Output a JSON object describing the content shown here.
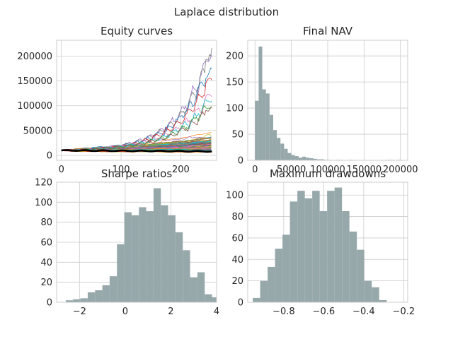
{
  "figure": {
    "title": "Laplace distribution"
  },
  "colors": {
    "grid": "#cccccc",
    "frame": "#cccccc",
    "text": "#262626",
    "bar": "#97a8ab",
    "bar_edge": "#8a9a9d",
    "median_line": "#000000",
    "palette": [
      "#1f77b4",
      "#ff7f0e",
      "#2ca02c",
      "#d62728",
      "#9467bd",
      "#8c564b",
      "#e377c2",
      "#7f7f7f",
      "#bcbd22",
      "#17becf"
    ]
  },
  "chart_data": [
    {
      "type": "line",
      "title": "Equity curves",
      "xlabel": "",
      "ylabel": "",
      "xlim": [
        -8,
        260
      ],
      "ylim": [
        -10000,
        232000
      ],
      "xticks": [
        0,
        100,
        200
      ],
      "yticks": [
        0,
        50000,
        100000,
        150000,
        200000
      ],
      "grid": true,
      "legend": "none",
      "note_series": "many simulated equity paths (about 1000), starting at 10000 and spanning 0-252 steps",
      "n_paths": 1000,
      "n_steps": 252,
      "start_value": 10000,
      "highlight_paths": [
        {
          "peak": 221000,
          "end": 195000
        },
        {
          "peak": 212000,
          "end": 208000
        },
        {
          "peak": 190000,
          "end": 160000
        },
        {
          "peak": 165000,
          "end": 150000
        },
        {
          "peak": 130000,
          "end": 120000
        },
        {
          "peak": 118000,
          "end": 110000
        },
        {
          "peak": 108000,
          "end": 96000
        },
        {
          "peak": 100000,
          "end": 92000
        }
      ],
      "median_path": {
        "start": 10000,
        "end": 8000
      }
    },
    {
      "type": "bar",
      "title": "Final NAV",
      "xlabel": "",
      "ylabel": "",
      "xlim": [
        -10000,
        210000
      ],
      "ylim": [
        0,
        230
      ],
      "xticks": [
        0,
        50000,
        100000,
        150000,
        200000
      ],
      "yticks": [
        0,
        50,
        100,
        150,
        200
      ],
      "grid": true,
      "bin_width": 5000,
      "bin_start": 0,
      "values": [
        114,
        218,
        136,
        128,
        87,
        58,
        43,
        32,
        22,
        14,
        10,
        8,
        5,
        7,
        5,
        4,
        3,
        2,
        2,
        1,
        1,
        0,
        1,
        1,
        0,
        0,
        1,
        0,
        0,
        0,
        0,
        0,
        0,
        0,
        0,
        0,
        1,
        1,
        0,
        1
      ]
    },
    {
      "type": "bar",
      "title": "Sharpe ratios",
      "xlabel": "",
      "ylabel": "",
      "xlim": [
        -3,
        4
      ],
      "ylim": [
        0,
        120
      ],
      "xticks": [
        -2,
        0,
        2,
        4
      ],
      "yticks": [
        0,
        20,
        40,
        60,
        80,
        100,
        120
      ],
      "grid": true,
      "bin_width": 0.32,
      "bin_start": -2.6,
      "values": [
        2,
        3,
        4,
        10,
        12,
        17,
        26,
        58,
        90,
        87,
        95,
        91,
        114,
        97,
        87,
        70,
        52,
        25,
        30,
        8,
        5,
        3,
        4
      ]
    },
    {
      "type": "bar",
      "title": "Maximum drawdowns",
      "xlabel": "",
      "ylabel": "",
      "xlim": [
        -0.98,
        -0.18
      ],
      "ylim": [
        0,
        112
      ],
      "xticks": [
        -0.8,
        -0.6,
        -0.4,
        -0.2
      ],
      "yticks": [
        0,
        20,
        40,
        60,
        80,
        100
      ],
      "grid": true,
      "bin_width": 0.0372,
      "bin_start": -0.955,
      "values": [
        4,
        20,
        33,
        50,
        63,
        94,
        104,
        97,
        104,
        85,
        104,
        107,
        85,
        66,
        49,
        20,
        14,
        2
      ]
    }
  ]
}
